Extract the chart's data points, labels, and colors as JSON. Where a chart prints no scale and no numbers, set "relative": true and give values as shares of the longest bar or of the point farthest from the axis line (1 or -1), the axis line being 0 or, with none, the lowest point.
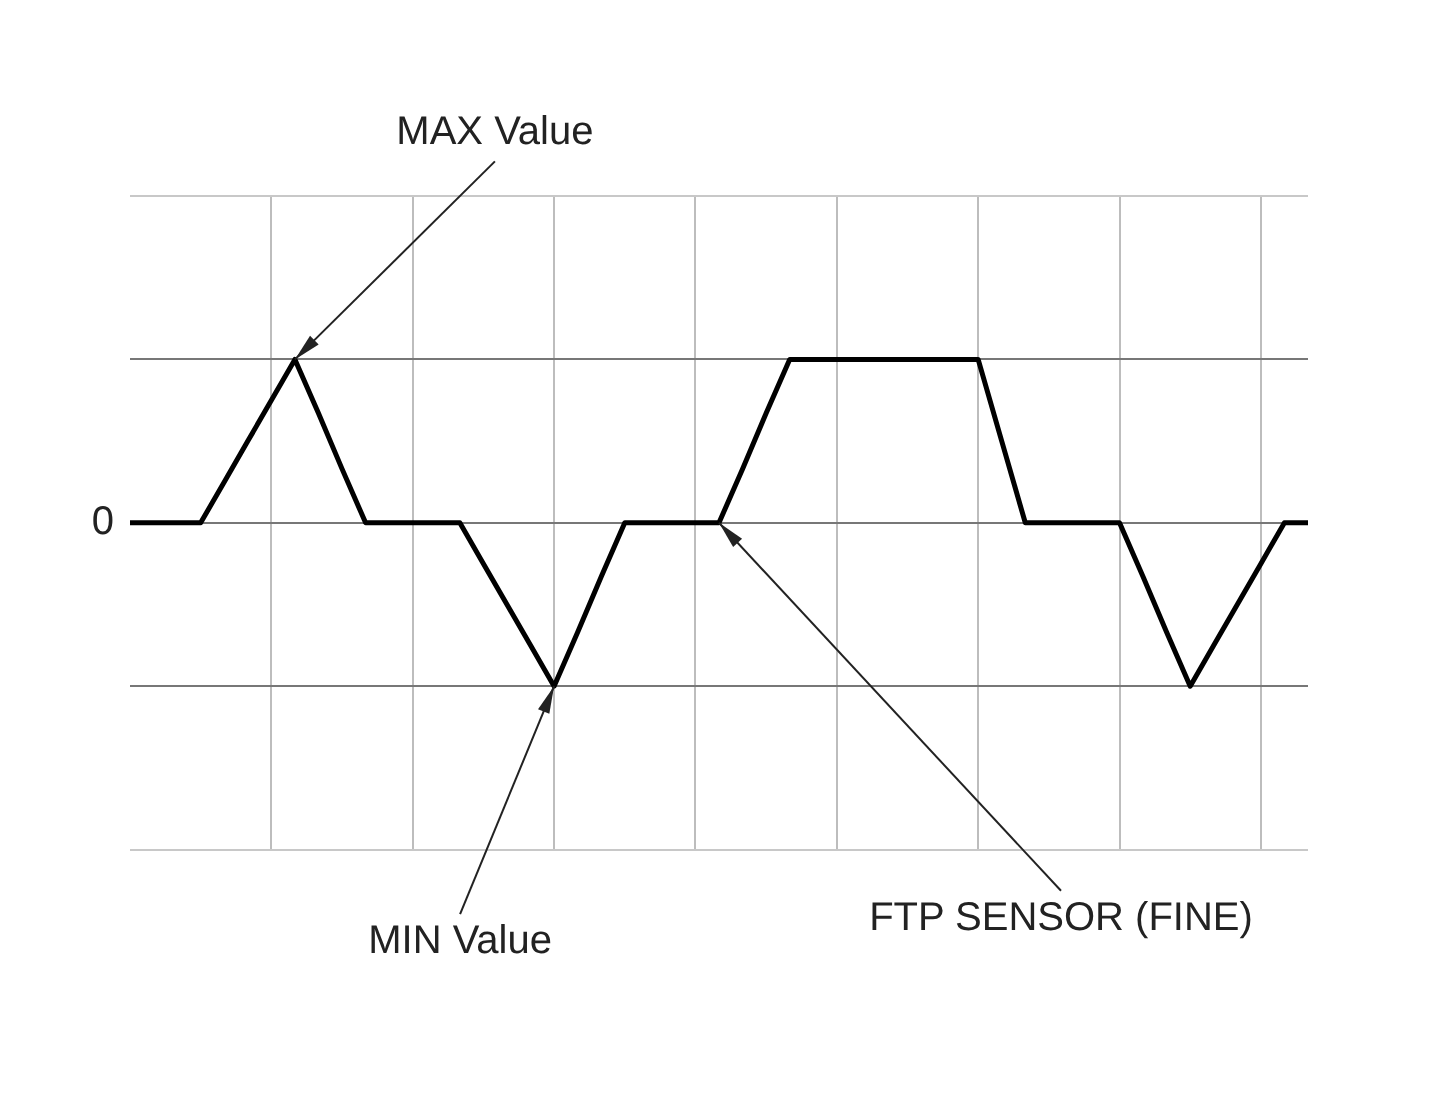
{
  "chart_data": {
    "type": "line",
    "relative": true,
    "categories": [
      null,
      null,
      null,
      null,
      null,
      null,
      null,
      null,
      null,
      null,
      null,
      null,
      null,
      null,
      null,
      null,
      null,
      null,
      null,
      null,
      null,
      null,
      null,
      null,
      null,
      null,
      null,
      null,
      null,
      null,
      null,
      null,
      null,
      null,
      null,
      null,
      null,
      null,
      null,
      null,
      null,
      null,
      null,
      null,
      null,
      null,
      null,
      null,
      null,
      null,
      null
    ],
    "values": [
      0,
      0,
      0,
      0,
      0.25,
      0.5,
      0.75,
      1,
      0.67,
      0.33,
      0,
      0,
      0,
      0,
      0,
      -0.25,
      -0.5,
      -0.75,
      -1,
      -0.67,
      -0.33,
      0,
      0,
      0,
      0,
      0,
      0.33,
      0.67,
      1,
      1,
      1,
      1,
      1,
      1,
      1,
      1,
      1,
      0.5,
      0,
      0,
      0,
      0,
      0,
      -0.33,
      -0.67,
      -1,
      -0.75,
      -0.5,
      -0.25,
      0,
      0
    ],
    "color": "#000000",
    "marker": "none",
    "line_style": "solid",
    "grid": true,
    "legend": false,
    "annotations": [
      "0",
      "MAX Value",
      "MIN Value",
      "FTP SENSOR (FINE)"
    ]
  }
}
